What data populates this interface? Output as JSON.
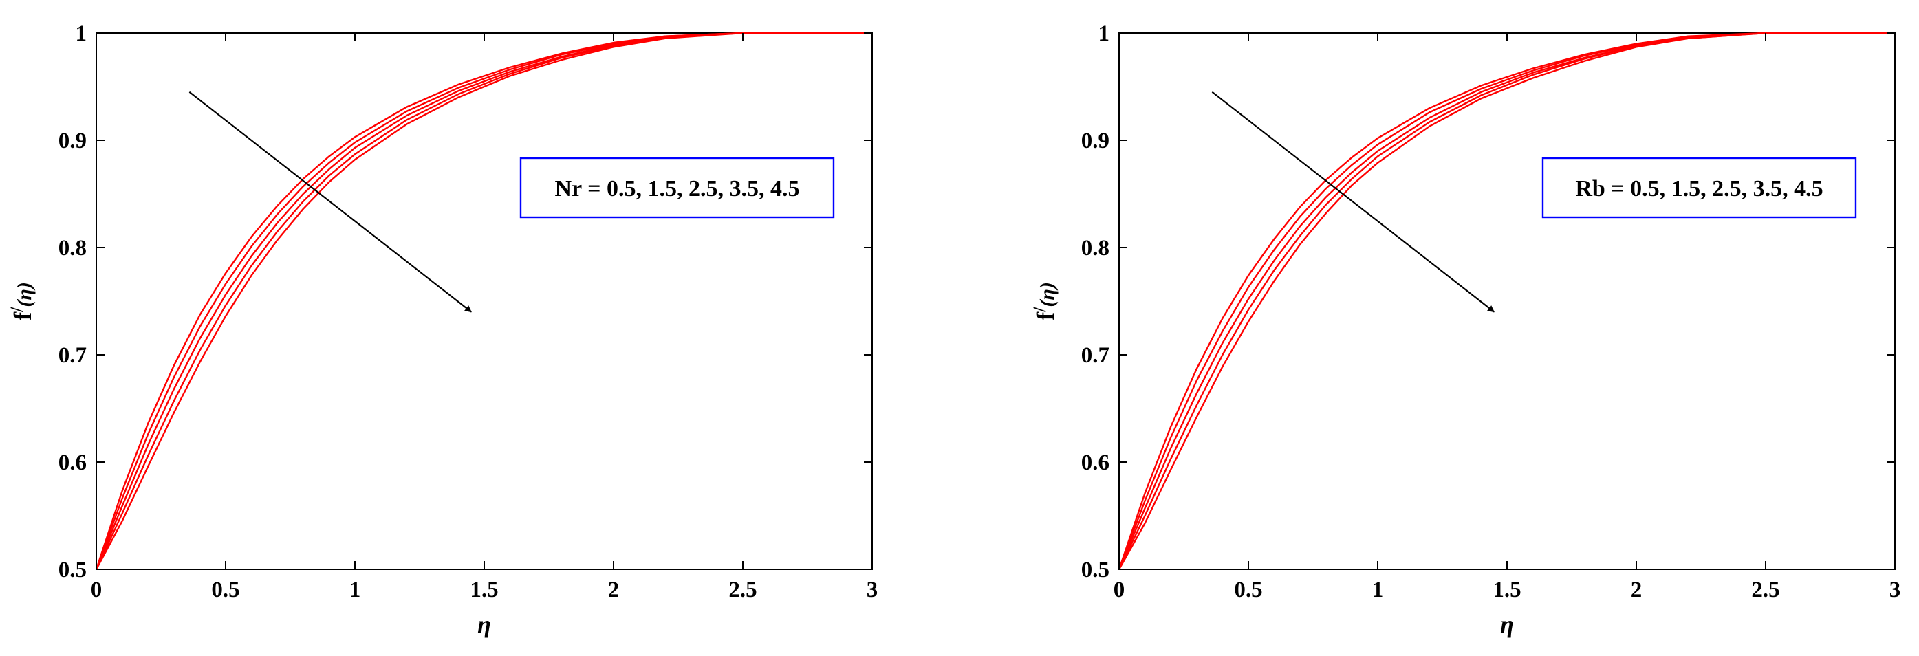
{
  "figure": {
    "line_color": "#ff0000",
    "axis_color": "#000000",
    "annotation_box_color": "#0000ff"
  },
  "chart_data": [
    {
      "type": "line",
      "panel": "left",
      "xlabel": "η",
      "ylabel_main": "f",
      "ylabel_sup": "/",
      "ylabel_arg": "(η)",
      "xlim": [
        0,
        3
      ],
      "ylim": [
        0.5,
        1
      ],
      "xticks": [
        "0",
        "0.5",
        "1",
        "1.5",
        "2",
        "2.5",
        "3"
      ],
      "yticks": [
        "0.5",
        "0.6",
        "0.7",
        "0.8",
        "0.9",
        "1"
      ],
      "grid": false,
      "annotation": "Nr = 0.5, 1.5, 2.5, 3.5, 4.5",
      "arrow": {
        "from": [
          0.36,
          0.945
        ],
        "to": [
          1.45,
          0.74
        ]
      },
      "x": [
        0,
        0.1,
        0.2,
        0.3,
        0.4,
        0.5,
        0.6,
        0.7,
        0.8,
        0.9,
        1.0,
        1.2,
        1.4,
        1.6,
        1.8,
        2.0,
        2.2,
        2.5,
        3.0
      ],
      "series": [
        {
          "values": [
            0.5,
            0.573,
            0.636,
            0.69,
            0.737,
            0.776,
            0.81,
            0.839,
            0.864,
            0.885,
            0.903,
            0.931,
            0.952,
            0.968,
            0.981,
            0.991,
            0.997,
            1.0,
            1.0
          ]
        },
        {
          "values": [
            0.5,
            0.566,
            0.626,
            0.679,
            0.726,
            0.766,
            0.801,
            0.831,
            0.857,
            0.879,
            0.898,
            0.927,
            0.949,
            0.966,
            0.98,
            0.99,
            0.997,
            1.0,
            1.0
          ]
        },
        {
          "values": [
            0.5,
            0.559,
            0.616,
            0.668,
            0.715,
            0.756,
            0.792,
            0.823,
            0.85,
            0.873,
            0.893,
            0.923,
            0.946,
            0.964,
            0.978,
            0.989,
            0.996,
            1.0,
            1.0
          ]
        },
        {
          "values": [
            0.5,
            0.552,
            0.606,
            0.657,
            0.704,
            0.746,
            0.783,
            0.815,
            0.843,
            0.867,
            0.887,
            0.919,
            0.943,
            0.962,
            0.977,
            0.988,
            0.996,
            1.0,
            1.0
          ]
        },
        {
          "values": [
            0.5,
            0.545,
            0.596,
            0.646,
            0.693,
            0.736,
            0.774,
            0.807,
            0.836,
            0.861,
            0.882,
            0.915,
            0.94,
            0.96,
            0.975,
            0.987,
            0.995,
            1.0,
            1.0
          ]
        }
      ]
    },
    {
      "type": "line",
      "panel": "right",
      "xlabel": "η",
      "ylabel_main": "f",
      "ylabel_sup": "/",
      "ylabel_arg": "(η)",
      "xlim": [
        0,
        3
      ],
      "ylim": [
        0.5,
        1
      ],
      "xticks": [
        "0",
        "0.5",
        "1",
        "1.5",
        "2",
        "2.5",
        "3"
      ],
      "yticks": [
        "0.5",
        "0.6",
        "0.7",
        "0.8",
        "0.9",
        "1"
      ],
      "grid": false,
      "annotation": "Rb = 0.5, 1.5, 2.5, 3.5, 4.5",
      "arrow": {
        "from": [
          0.36,
          0.945
        ],
        "to": [
          1.45,
          0.74
        ]
      },
      "x": [
        0,
        0.1,
        0.2,
        0.3,
        0.4,
        0.5,
        0.6,
        0.7,
        0.8,
        0.9,
        1.0,
        1.2,
        1.4,
        1.6,
        1.8,
        2.0,
        2.2,
        2.5,
        3.0
      ],
      "series": [
        {
          "values": [
            0.5,
            0.571,
            0.633,
            0.687,
            0.734,
            0.774,
            0.808,
            0.838,
            0.863,
            0.884,
            0.902,
            0.93,
            0.951,
            0.967,
            0.98,
            0.99,
            0.997,
            1.0,
            1.0
          ]
        },
        {
          "values": [
            0.5,
            0.564,
            0.623,
            0.676,
            0.722,
            0.763,
            0.798,
            0.829,
            0.855,
            0.877,
            0.896,
            0.926,
            0.948,
            0.965,
            0.979,
            0.989,
            0.996,
            1.0,
            1.0
          ]
        },
        {
          "values": [
            0.5,
            0.557,
            0.613,
            0.664,
            0.711,
            0.752,
            0.788,
            0.82,
            0.847,
            0.87,
            0.89,
            0.921,
            0.945,
            0.963,
            0.977,
            0.988,
            0.996,
            1.0,
            1.0
          ]
        },
        {
          "values": [
            0.5,
            0.55,
            0.603,
            0.653,
            0.7,
            0.742,
            0.779,
            0.811,
            0.84,
            0.864,
            0.885,
            0.917,
            0.942,
            0.961,
            0.976,
            0.988,
            0.995,
            1.0,
            1.0
          ]
        },
        {
          "values": [
            0.5,
            0.543,
            0.593,
            0.642,
            0.689,
            0.731,
            0.769,
            0.803,
            0.832,
            0.858,
            0.879,
            0.913,
            0.939,
            0.958,
            0.974,
            0.987,
            0.995,
            1.0,
            1.0
          ]
        }
      ]
    }
  ]
}
